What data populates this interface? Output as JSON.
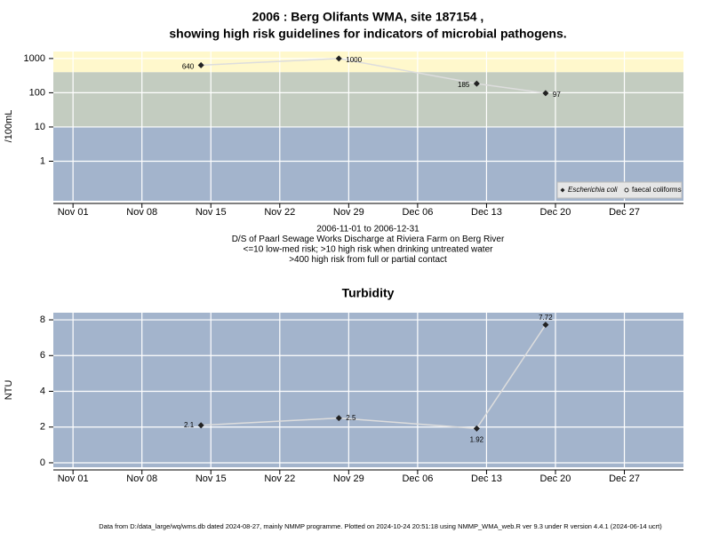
{
  "chart_data": [
    {
      "type": "line",
      "title": "2006 : Berg Olifants WMA, site 187154 ,",
      "subtitle": "showing high risk guidelines for indicators of microbial pathogens.",
      "y_label": "/100mL",
      "log_scale": true,
      "x": [
        "2006-11-14",
        "2006-11-28",
        "2006-12-12",
        "2006-12-19"
      ],
      "series": [
        {
          "name": "Escherichia coli",
          "color": "#222222",
          "marker": "diamond",
          "values": [
            640,
            1000,
            185,
            97
          ]
        },
        {
          "name": "faecal coliforms",
          "color": "#222222",
          "marker": "circle",
          "values": [
            null,
            null,
            null,
            null
          ]
        }
      ],
      "line_color": "#dddddd",
      "xlim": [
        "2006-10-30",
        "2007-01-02"
      ],
      "xticks": [
        {
          "value": "2006-11-01",
          "label": "Nov 01"
        },
        {
          "value": "2006-11-08",
          "label": "Nov 08"
        },
        {
          "value": "2006-11-15",
          "label": "Nov 15"
        },
        {
          "value": "2006-11-22",
          "label": "Nov 22"
        },
        {
          "value": "2006-11-29",
          "label": "Nov 29"
        },
        {
          "value": "2006-12-06",
          "label": "Dec 06"
        },
        {
          "value": "2006-12-13",
          "label": "Dec 13"
        },
        {
          "value": "2006-12-20",
          "label": "Dec 20"
        },
        {
          "value": "2006-12-27",
          "label": "Dec 27"
        }
      ],
      "ylim": [
        0.07,
        1600
      ],
      "yticks": [
        1,
        10,
        100,
        1000
      ],
      "thresholds": [
        10,
        400
      ],
      "band_colors": [
        "#a3b4cc",
        "#c3ccc0",
        "#fff8cc"
      ],
      "grid": true,
      "legend": "bottom-right",
      "annotations": [
        "2006-11-01 to 2006-12-31",
        "D/S of Paarl Sewage Works Discharge at Riviera Farm on Berg River",
        "<=10 low-med risk; >10 high risk when drinking untreated water",
        ">400 high risk from full or partial contact"
      ]
    },
    {
      "type": "line",
      "title": "Turbidity",
      "y_label": "NTU",
      "log_scale": false,
      "x": [
        "2006-11-14",
        "2006-11-28",
        "2006-12-12",
        "2006-12-19"
      ],
      "series": [
        {
          "name": "Turbidity",
          "color": "#222222",
          "marker": "diamond",
          "values": [
            2.1,
            2.5,
            1.92,
            7.72
          ]
        }
      ],
      "line_color": "#dddddd",
      "xlim": [
        "2006-10-30",
        "2007-01-02"
      ],
      "xticks": [
        {
          "value": "2006-11-01",
          "label": "Nov 01"
        },
        {
          "value": "2006-11-08",
          "label": "Nov 08"
        },
        {
          "value": "2006-11-15",
          "label": "Nov 15"
        },
        {
          "value": "2006-11-22",
          "label": "Nov 22"
        },
        {
          "value": "2006-11-29",
          "label": "Nov 29"
        },
        {
          "value": "2006-12-06",
          "label": "Dec 06"
        },
        {
          "value": "2006-12-13",
          "label": "Dec 13"
        },
        {
          "value": "2006-12-20",
          "label": "Dec 20"
        },
        {
          "value": "2006-12-27",
          "label": "Dec 27"
        }
      ],
      "ylim": [
        -0.25,
        8.4
      ],
      "yticks": [
        0,
        2,
        4,
        6,
        8
      ],
      "background": "#a3b4cc",
      "grid": true
    }
  ],
  "footer": "Data from D:/data_large/wq/wms.db dated 2024-08-27, mainly NMMP programme. Plotted on 2024-10-24 20:51:18 using NMMP_WMA_web.R ver 9.3 under R version 4.4.1 (2024-06-14 ucrt)"
}
